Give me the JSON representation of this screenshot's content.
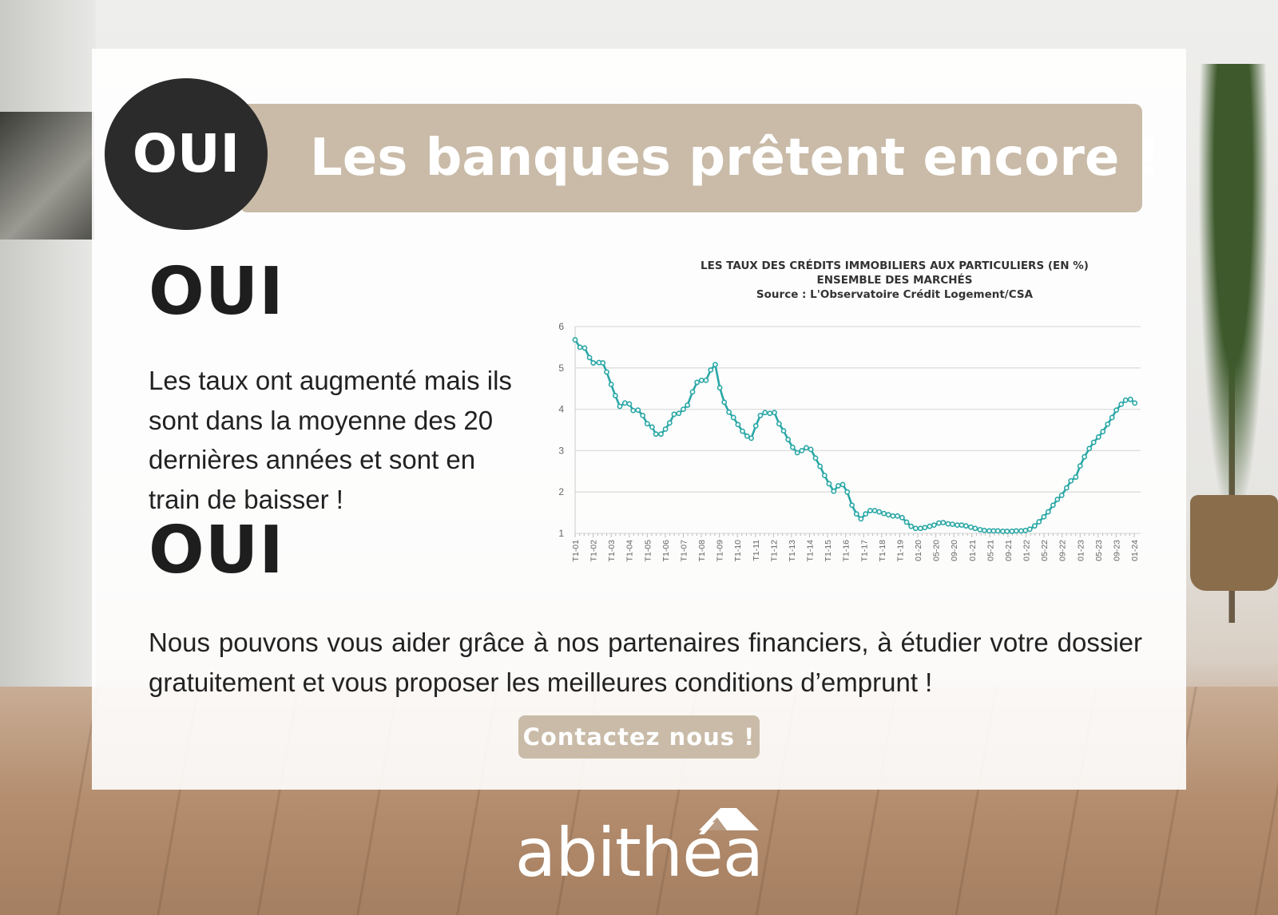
{
  "header": {
    "badge": "OUI",
    "title": "Les banques prêtent encore !"
  },
  "section1": {
    "heading": "OUI",
    "text": "Les taux ont augmenté mais ils sont dans la moyenne des 20 dernières années et sont en train de baisser !"
  },
  "section2": {
    "heading": "OUI",
    "text": "Nous pouvons vous aider grâce à nos partenaires financiers, à étudier votre dossier gratuitement et vous proposer les meilleures conditions d’emprunt !"
  },
  "cta": {
    "label": "Contactez nous !"
  },
  "logo": {
    "text": "abithéa"
  },
  "colors": {
    "accent": "#c9bba8",
    "dark": "#2b2b2b",
    "line": "#2aa7a6"
  },
  "chart_data": {
    "type": "line",
    "title": "LES TAUX DES CRÉDITS IMMOBILIERS AUX PARTICULIERS (EN %)",
    "subtitle": "ENSEMBLE DES MARCHÉS",
    "source": "Source : L'Observatoire Crédit Logement/CSA",
    "ylim": [
      1,
      6
    ],
    "yticks": [
      "1",
      "2",
      "3",
      "4",
      "5",
      "6"
    ],
    "grid": true,
    "categories": [
      "T1-01",
      "T1-02",
      "T1-03",
      "T1-04",
      "T1-05",
      "T1-06",
      "T1-07",
      "T1-08",
      "T1-09",
      "T1-10",
      "T1-11",
      "T1-12",
      "T1-13",
      "T1-14",
      "T1-15",
      "T1-16",
      "T1-17",
      "T1-18",
      "T1-19",
      "01-20",
      "05-20",
      "09-20",
      "01-21",
      "05-21",
      "09-21",
      "01-22",
      "05-22",
      "09-22",
      "01-23",
      "05-23",
      "09-23",
      "01-24"
    ],
    "series": [
      {
        "x": [
          2001.0,
          2001.27,
          2001.53,
          2001.8,
          2002.01,
          2002.33,
          2002.54,
          2002.75,
          2003.0,
          2003.23,
          2003.48,
          2003.76,
          2004.01,
          2004.22,
          2004.49,
          2004.75,
          2005.0,
          2005.27,
          2005.48,
          2005.76,
          2006.01,
          2006.24,
          2006.49,
          2006.75,
          2007.0,
          2007.23,
          2007.51,
          2007.76,
          2008.01,
          2008.26,
          2008.52,
          2008.77,
          2009.02,
          2009.27,
          2009.53,
          2009.78,
          2010.03,
          2010.28,
          2010.54,
          2010.77,
          2011.02,
          2011.27,
          2011.53,
          2011.8,
          2012.05,
          2012.31,
          2012.56,
          2012.81,
          2013.06,
          2013.32,
          2013.57,
          2013.82,
          2014.07,
          2014.33,
          2014.58,
          2014.83,
          2015.08,
          2015.34,
          2015.59,
          2015.84,
          2016.09,
          2016.35,
          2016.6,
          2016.85,
          2017.11,
          2017.36,
          2017.61,
          2017.86,
          2018.12,
          2018.37,
          2018.62,
          2018.87,
          2019.13,
          2019.38,
          2019.63,
          2019.88,
          2020.05,
          2020.13,
          2020.22,
          2020.3,
          2020.39,
          2020.47,
          2020.56,
          2020.64,
          2020.73,
          2020.81,
          2020.89,
          2020.98,
          2021.06,
          2021.15,
          2021.23,
          2021.32,
          2021.4,
          2021.48,
          2021.57,
          2021.65,
          2021.74,
          2021.82,
          2021.91,
          2021.99,
          2022.07,
          2022.16,
          2022.24,
          2022.33,
          2022.41,
          2022.5,
          2022.58,
          2022.66,
          2022.75,
          2022.83,
          2022.92,
          2023.0,
          2023.08,
          2023.17,
          2023.25,
          2023.34,
          2023.42,
          2023.51,
          2023.59,
          2023.67,
          2023.76,
          2023.84,
          2023.93,
          2024.01
        ],
        "values": [
          5.68,
          5.5,
          5.48,
          5.25,
          5.12,
          5.13,
          5.12,
          4.9,
          4.6,
          4.33,
          4.07,
          4.15,
          4.13,
          3.97,
          3.98,
          3.85,
          3.65,
          3.57,
          3.4,
          3.4,
          3.52,
          3.67,
          3.88,
          3.9,
          4.0,
          4.1,
          4.42,
          4.65,
          4.7,
          4.7,
          4.95,
          5.08,
          4.52,
          4.17,
          3.93,
          3.8,
          3.63,
          3.47,
          3.35,
          3.3,
          3.6,
          3.85,
          3.92,
          3.9,
          3.92,
          3.65,
          3.48,
          3.27,
          3.08,
          2.95,
          3.0,
          3.07,
          3.03,
          2.82,
          2.62,
          2.4,
          2.2,
          2.02,
          2.15,
          2.18,
          2.0,
          1.68,
          1.47,
          1.35,
          1.47,
          1.55,
          1.55,
          1.52,
          1.48,
          1.45,
          1.42,
          1.42,
          1.38,
          1.27,
          1.17,
          1.12,
          1.12,
          1.14,
          1.17,
          1.2,
          1.25,
          1.26,
          1.23,
          1.22,
          1.2,
          1.2,
          1.18,
          1.15,
          1.12,
          1.09,
          1.07,
          1.06,
          1.06,
          1.06,
          1.05,
          1.05,
          1.05,
          1.06,
          1.06,
          1.07,
          1.1,
          1.18,
          1.28,
          1.4,
          1.52,
          1.68,
          1.82,
          1.92,
          2.1,
          2.27,
          2.36,
          2.63,
          2.85,
          3.05,
          3.2,
          3.33,
          3.46,
          3.64,
          3.8,
          3.98,
          4.12,
          4.22,
          4.24,
          4.15
        ]
      }
    ]
  }
}
